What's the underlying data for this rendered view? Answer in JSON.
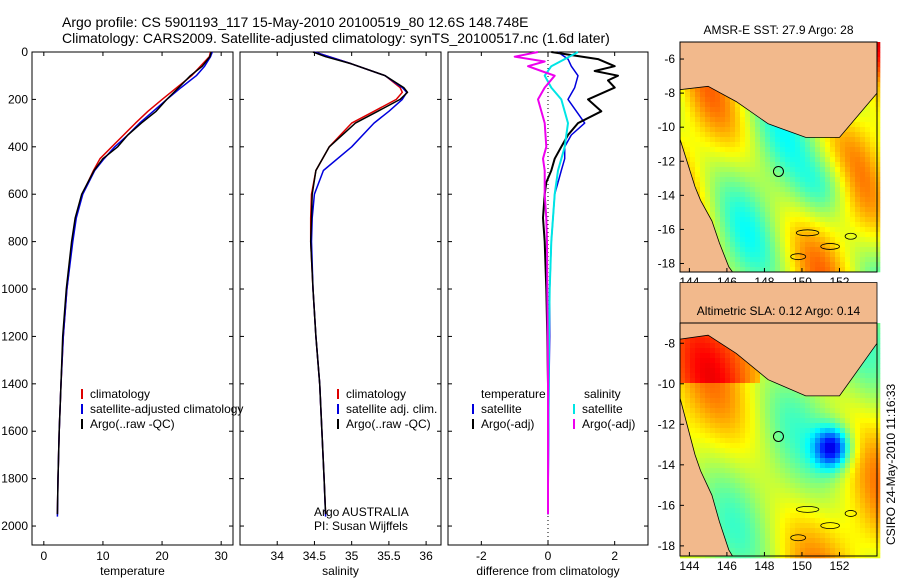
{
  "header": {
    "line1": "Argo profile: CS 5901193_117 15-May-2010 20100519_80 12.6S 148.748E",
    "line2": "Climatology: CARS2009. Satellite-adjusted climatology: synTS_20100517.nc (1.6d later)"
  },
  "side_label": "CSIRO 24-May-2010 11:16:33",
  "credits": {
    "line1": "Argo AUSTRALIA",
    "line2": "PI: Susan Wijffels"
  },
  "colors": {
    "clim": "#dd0000",
    "sat": "#0000dd",
    "argo": "#000000",
    "sal_sat": "#00e5e5",
    "sal_argo": "#ee00ee",
    "land": "#f2b98c"
  },
  "chart_data": [
    {
      "type": "line",
      "title": "",
      "xlabel": "temperature",
      "ylabel": "",
      "xlim": [
        -2,
        32
      ],
      "ylim": [
        2080,
        0
      ],
      "xticks": [
        "0",
        "10",
        "20",
        "30"
      ],
      "yticks": [
        "0",
        "200",
        "400",
        "600",
        "800",
        "1000",
        "1200",
        "1400",
        "1600",
        "1800",
        "2000"
      ],
      "legend": [
        "climatology",
        "satellite-adjusted climatology",
        "Argo(..raw -QC)"
      ],
      "series": [
        {
          "name": "climatology",
          "depth": [
            0,
            20,
            60,
            100,
            150,
            200,
            250,
            300,
            350,
            400,
            450,
            500,
            600,
            700,
            800,
            1000,
            1200,
            1400,
            1600,
            1800,
            1950
          ],
          "values": [
            28.2,
            28.0,
            26.5,
            25.0,
            22.5,
            20.0,
            17.6,
            15.5,
            13.5,
            11.5,
            9.5,
            8.4,
            6.5,
            5.4,
            4.8,
            3.9,
            3.3,
            2.9,
            2.6,
            2.4,
            2.3
          ]
        },
        {
          "name": "satellite-adjusted climatology",
          "depth": [
            0,
            20,
            60,
            100,
            150,
            200,
            250,
            300,
            350,
            400,
            450,
            500,
            600,
            700,
            800,
            1000,
            1200,
            1400,
            1600,
            1800,
            1960
          ],
          "values": [
            28.5,
            28.2,
            27.2,
            25.8,
            23.2,
            20.8,
            18.5,
            16.2,
            14.2,
            12.0,
            10.2,
            8.6,
            6.6,
            5.5,
            4.9,
            3.9,
            3.3,
            2.9,
            2.6,
            2.4,
            2.3
          ]
        },
        {
          "name": "Argo(..raw -QC)",
          "depth": [
            0,
            20,
            60,
            100,
            150,
            200,
            250,
            300,
            350,
            400,
            450,
            500,
            600,
            700,
            800,
            1000,
            1200,
            1400,
            1600,
            1800,
            1950
          ],
          "values": [
            28.3,
            28.1,
            26.8,
            24.8,
            22.8,
            20.8,
            19.0,
            16.5,
            14.2,
            12.5,
            10.0,
            8.5,
            6.4,
            5.3,
            4.7,
            3.8,
            3.2,
            2.9,
            2.6,
            2.4,
            2.3
          ]
        }
      ]
    },
    {
      "type": "line",
      "title": "",
      "xlabel": "salinity",
      "ylabel": "",
      "xlim": [
        33.5,
        36.2
      ],
      "ylim": [
        2080,
        0
      ],
      "xticks": [
        "34",
        "34.5",
        "35",
        "35.5",
        "36"
      ],
      "legend": [
        "climatology",
        "satellite adj. clim.",
        "Argo(..raw -QC)"
      ],
      "series": [
        {
          "name": "climatology",
          "depth": [
            0,
            50,
            100,
            150,
            170,
            200,
            250,
            300,
            400,
            500,
            600,
            700,
            800,
            1000,
            1200,
            1400,
            1600,
            1800,
            1950
          ],
          "values": [
            34.5,
            35.0,
            35.45,
            35.65,
            35.68,
            35.6,
            35.3,
            35.0,
            34.7,
            34.52,
            34.46,
            34.45,
            34.45,
            34.48,
            34.52,
            34.57,
            34.6,
            34.63,
            34.65
          ]
        },
        {
          "name": "satellite adj. clim.",
          "depth": [
            0,
            50,
            100,
            150,
            170,
            200,
            250,
            300,
            400,
            500,
            600,
            700,
            800,
            1000,
            1200,
            1400,
            1600,
            1800,
            1960
          ],
          "values": [
            34.5,
            35.0,
            35.45,
            35.68,
            35.74,
            35.68,
            35.5,
            35.3,
            35.0,
            34.62,
            34.5,
            34.47,
            34.46,
            34.48,
            34.52,
            34.57,
            34.6,
            34.63,
            34.65
          ]
        },
        {
          "name": "Argo(..raw -QC)",
          "depth": [
            0,
            20,
            50,
            100,
            150,
            170,
            200,
            250,
            300,
            400,
            500,
            600,
            700,
            800,
            1000,
            1200,
            1400,
            1600,
            1800,
            1950
          ],
          "values": [
            34.48,
            34.65,
            35.0,
            35.45,
            35.7,
            35.75,
            35.65,
            35.35,
            35.05,
            34.7,
            34.52,
            34.47,
            34.46,
            34.45,
            34.48,
            34.52,
            34.57,
            34.6,
            34.63,
            34.65
          ]
        }
      ]
    },
    {
      "type": "line",
      "title": "",
      "xlabel": "difference from climatology",
      "ylabel": "",
      "xlim": [
        -3,
        3
      ],
      "ylim": [
        2080,
        0
      ],
      "xticks": [
        "-2",
        "0",
        "2"
      ],
      "legend": {
        "temperature_header": "temperature",
        "salinity_header": "salinity",
        "temperature": [
          "satellite",
          "Argo(-adj)"
        ],
        "salinity": [
          "satellite",
          "Argo(-adj)"
        ]
      },
      "series": [
        {
          "name": "temperature satellite",
          "depth": [
            0,
            30,
            60,
            100,
            150,
            200,
            260,
            300,
            350,
            400,
            450,
            500,
            550,
            600,
            700,
            800,
            1000,
            1200,
            1400,
            1600,
            1800,
            1950
          ],
          "values": [
            0.3,
            0.6,
            0.7,
            0.9,
            0.8,
            0.6,
            0.9,
            1.1,
            0.7,
            0.5,
            0.5,
            0.4,
            0.3,
            0.2,
            0.15,
            0.1,
            0.05,
            0.05,
            0.03,
            0.02,
            0.01,
            0.0
          ]
        },
        {
          "name": "temperature Argo(-adj)",
          "depth": [
            0,
            30,
            60,
            80,
            100,
            120,
            150,
            200,
            250,
            300,
            350,
            400,
            450,
            500,
            550,
            600,
            700,
            800,
            1000,
            1200,
            1400,
            1600,
            1800,
            1950
          ],
          "values": [
            0.1,
            1.5,
            2.0,
            1.4,
            2.1,
            1.8,
            2.0,
            1.2,
            1.6,
            0.9,
            0.6,
            0.4,
            0.2,
            0.1,
            -0.05,
            -0.1,
            -0.15,
            -0.1,
            -0.05,
            -0.02,
            0.0,
            0.0,
            0.0,
            0.0
          ]
        },
        {
          "name": "salinity satellite",
          "depth": [
            0,
            30,
            60,
            100,
            150,
            200,
            300,
            400,
            500,
            600,
            700,
            800,
            1000,
            1200,
            1400,
            1600,
            1800,
            1950
          ],
          "values": [
            0.9,
            0.5,
            0.1,
            -0.1,
            0.1,
            0.4,
            0.6,
            0.5,
            0.3,
            0.2,
            0.15,
            0.1,
            0.05,
            0.03,
            0.02,
            0.01,
            0.0,
            0.0
          ]
        },
        {
          "name": "salinity Argo(-adj)",
          "depth": [
            0,
            20,
            40,
            60,
            80,
            100,
            150,
            200,
            300,
            400,
            450,
            500,
            600,
            700,
            800,
            1000,
            1200,
            1400,
            1600,
            1800,
            1950
          ],
          "values": [
            -0.3,
            -1.0,
            -0.1,
            -0.6,
            -0.2,
            0.2,
            -0.1,
            -0.3,
            -0.1,
            -0.05,
            -0.15,
            -0.1,
            -0.1,
            -0.05,
            -0.03,
            -0.02,
            -0.01,
            0.0,
            0.0,
            0.0,
            0.0
          ]
        }
      ]
    },
    {
      "type": "heatmap",
      "title": "AMSR-E SST: 27.9 Argo: 28",
      "xlim": [
        143.5,
        154
      ],
      "ylim": [
        -18.5,
        -5
      ],
      "xticks": [
        "144",
        "146",
        "148",
        "150",
        "152"
      ],
      "yticks": [
        "-6",
        "-8",
        "-10",
        "-12",
        "-14",
        "-16",
        "-18"
      ],
      "marker": {
        "lon": 148.748,
        "lat": -12.6
      }
    },
    {
      "type": "heatmap",
      "title": "Altimetric SLA: 0.12 Argo: 0.14",
      "xlim": [
        143.5,
        154
      ],
      "ylim": [
        -18.5,
        -7
      ],
      "xticks": [
        "144",
        "146",
        "148",
        "150",
        "152"
      ],
      "yticks": [
        "-8",
        "-10",
        "-12",
        "-14",
        "-16",
        "-18"
      ],
      "marker": {
        "lon": 148.748,
        "lat": -12.6
      }
    }
  ]
}
